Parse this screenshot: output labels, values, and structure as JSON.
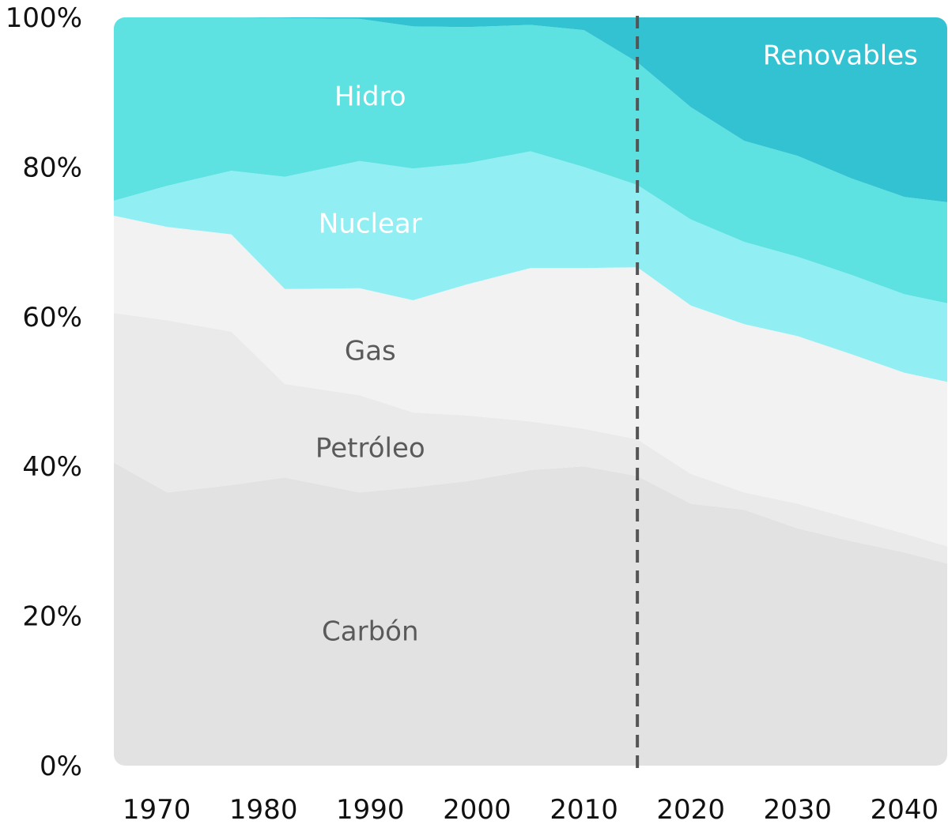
{
  "chart_data": {
    "type": "area",
    "stacked": true,
    "normalized": true,
    "title": "",
    "xlabel": "",
    "ylabel": "",
    "xlim": [
      1966,
      2044
    ],
    "ylim": [
      0,
      100
    ],
    "x_ticks": [
      "1970",
      "1980",
      "1990",
      "2000",
      "2010",
      "2020",
      "2030",
      "2040"
    ],
    "y_ticks": [
      "0%",
      "20%",
      "40%",
      "60%",
      "80%",
      "100%"
    ],
    "grid": false,
    "projection_divider_year": 2015,
    "x": [
      1966,
      1971,
      1977,
      1982,
      1989,
      1994,
      1999,
      2005,
      2010,
      2015,
      2020,
      2025,
      2030,
      2035,
      2040,
      2044
    ],
    "series": [
      {
        "name": "Carbón",
        "label": "Carbón",
        "color": "#e2e2e2",
        "values": [
          40.5,
          36.5,
          37.5,
          38.5,
          36.5,
          37.2,
          38,
          39.5,
          40,
          38.7,
          35,
          34.2,
          31.7,
          30,
          28.5,
          27
        ]
      },
      {
        "name": "Petróleo",
        "label": "Petróleo",
        "color": "#eaeaea",
        "values": [
          20,
          23,
          20.5,
          12.5,
          13,
          10,
          8.8,
          6.5,
          5,
          4.9,
          4,
          2.3,
          3.3,
          3,
          2.5,
          2.3
        ]
      },
      {
        "name": "Gas",
        "label": "Gas",
        "color": "#f2f2f2",
        "values": [
          13,
          12.5,
          13,
          12.7,
          14.3,
          15,
          17.5,
          20.5,
          21.5,
          23,
          22.5,
          22.5,
          22.4,
          22,
          21.5,
          22
        ]
      },
      {
        "name": "Nuclear",
        "label": "Nuclear",
        "color": "#91eff4",
        "values": [
          2,
          5.5,
          8.5,
          15,
          17,
          17.6,
          16.2,
          15.6,
          13.5,
          11,
          11.5,
          11,
          10.6,
          10.6,
          10.5,
          10.5
        ]
      },
      {
        "name": "Hidro",
        "label": "Hidro",
        "color": "#5de1e1",
        "values": [
          24.5,
          22.5,
          20.5,
          21.2,
          19,
          19,
          18.2,
          16.9,
          18.3,
          16.4,
          15,
          13.5,
          13.5,
          12.9,
          13,
          13.5
        ]
      },
      {
        "name": "Renovables",
        "label": "Renovables",
        "color": "#32c2d2",
        "values": [
          0,
          0,
          0,
          0.1,
          0.2,
          1.2,
          1.3,
          1,
          1.7,
          6,
          12,
          16.5,
          18.5,
          21.5,
          24,
          24.7
        ]
      }
    ],
    "label_colors": {
      "dark_text": "#5a5a5a",
      "light_text": "#ffffff",
      "divider": "#555555"
    }
  }
}
